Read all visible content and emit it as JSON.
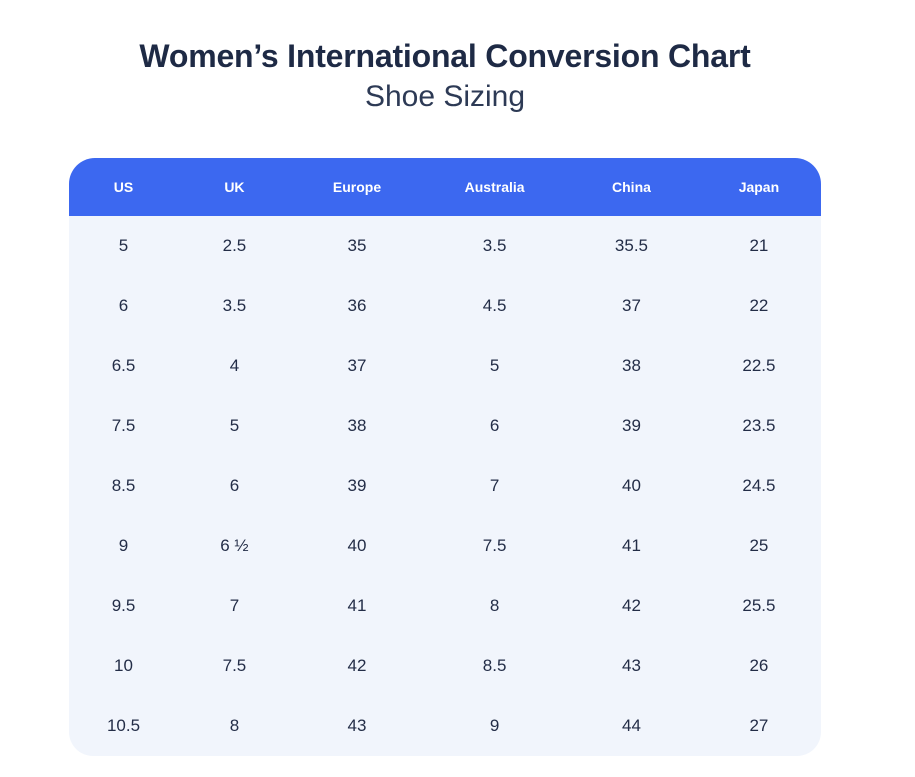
{
  "header": {
    "title": "Women’s International Conversion Chart",
    "subtitle": "Shoe Sizing"
  },
  "chart_data": {
    "type": "table",
    "title": "Women’s International Conversion Chart",
    "subtitle": "Shoe Sizing",
    "columns": [
      "US",
      "UK",
      "Europe",
      "Australia",
      "China",
      "Japan"
    ],
    "rows": [
      [
        "5",
        "2.5",
        "35",
        "3.5",
        "35.5",
        "21"
      ],
      [
        "6",
        "3.5",
        "36",
        "4.5",
        "37",
        "22"
      ],
      [
        "6.5",
        "4",
        "37",
        "5",
        "38",
        "22.5"
      ],
      [
        "7.5",
        "5",
        "38",
        "6",
        "39",
        "23.5"
      ],
      [
        "8.5",
        "6",
        "39",
        "7",
        "40",
        "24.5"
      ],
      [
        "9",
        "6 ½",
        "40",
        "7.5",
        "41",
        "25"
      ],
      [
        "9.5",
        "7",
        "41",
        "8",
        "42",
        "25.5"
      ],
      [
        "10",
        "7.5",
        "42",
        "8.5",
        "43",
        "26"
      ],
      [
        "10.5",
        "8",
        "43",
        "9",
        "44",
        "27"
      ]
    ]
  },
  "colors": {
    "header_bg": "#3c68f0",
    "header_text": "#ffffff",
    "body_bg": "#f1f5fc",
    "body_text": "#232d47",
    "title_text": "#1e2a45",
    "subtitle_text": "#2d3a55",
    "page_bg": "#ffffff"
  }
}
